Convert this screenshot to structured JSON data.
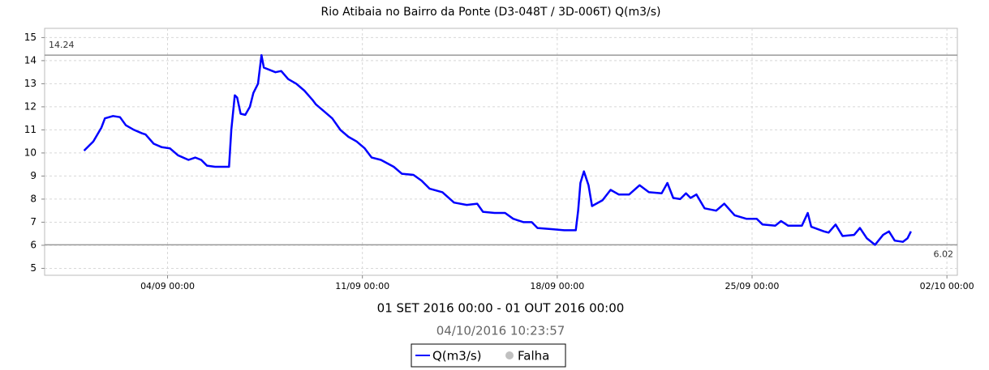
{
  "chart_data": {
    "type": "line",
    "title": "Rio Atibaia no Bairro da Ponte (D3-048T / 3D-006T) Q(m3/s)",
    "subtitle": "01 SET 2016 00:00 - 01 OUT 2016 00:00",
    "timestamp": "04/10/2016 10:23:57",
    "x": [
      "01/09 00:00",
      "01/09 08:00",
      "01/09 15:00",
      "01/09 18:00",
      "02/09 01:00",
      "02/09 07:00",
      "02/09 12:00",
      "02/09 19:00",
      "03/09 02:00",
      "03/09 05:00",
      "03/09 12:00",
      "03/09 19:00",
      "04/09 02:00",
      "04/09 09:00",
      "04/09 18:00",
      "05/09 00:00",
      "05/09 05:00",
      "05/09 10:00",
      "05/09 17:00",
      "06/09 02:00",
      "06/09 05:00",
      "06/09 07:00",
      "06/09 10:00",
      "06/09 12:00",
      "06/09 15:00",
      "06/09 19:00",
      "06/09 23:00",
      "07/09 02:00",
      "07/09 06:00",
      "07/09 09:00",
      "07/09 11:00",
      "07/09 16:00",
      "07/09 21:00",
      "08/09 02:00",
      "08/09 08:00",
      "08/09 15:00",
      "08/09 22:00",
      "09/09 05:00",
      "09/09 08:00",
      "09/09 15:00",
      "09/09 22:00",
      "10/09 05:00",
      "10/09 12:00",
      "10/09 19:00",
      "11/09 02:00",
      "11/09 08:00",
      "11/09 16:00",
      "12/09 03:00",
      "12/09 10:00",
      "12/09 20:00",
      "13/09 03:00",
      "13/09 10:00",
      "13/09 21:00",
      "14/09 07:00",
      "14/09 18:00",
      "15/09 03:00",
      "15/09 08:00",
      "15/09 18:00",
      "16/09 03:00",
      "16/09 10:00",
      "16/09 19:00",
      "17/09 02:00",
      "17/09 07:00",
      "17/09 19:00",
      "18/09 06:00",
      "18/09 16:00",
      "18/09 18:00",
      "18/09 20:00",
      "18/09 23:00",
      "19/09 03:00",
      "19/09 06:00",
      "19/09 15:00",
      "19/09 22:00",
      "20/09 05:00",
      "20/09 14:00",
      "20/09 23:00",
      "21/09 07:00",
      "21/09 18:00",
      "21/09 23:00",
      "22/09 04:00",
      "22/09 10:00",
      "22/09 15:00",
      "22/09 19:00",
      "23/09 00:00",
      "23/09 07:00",
      "23/09 17:00",
      "24/09 00:00",
      "24/09 09:00",
      "24/09 19:00",
      "25/09 04:00",
      "25/09 09:00",
      "25/09 20:00",
      "26/09 01:00",
      "26/09 07:00",
      "26/09 19:00",
      "27/09 00:00",
      "27/09 03:00",
      "27/09 14:00",
      "27/09 18:00",
      "28/09 00:00",
      "28/09 06:00",
      "28/09 16:00",
      "28/09 21:00",
      "29/09 03:00",
      "29/09 10:00",
      "29/09 17:00",
      "29/09 22:00",
      "30/09 03:00",
      "30/09 10:00",
      "30/09 14:00",
      "30/09 17:00"
    ],
    "series": [
      {
        "name": "Q(m3/s)",
        "color": "#0000ff",
        "values": [
          10.1,
          10.5,
          11.1,
          11.5,
          11.6,
          11.55,
          11.2,
          11.0,
          10.85,
          10.8,
          10.4,
          10.25,
          10.2,
          9.9,
          9.7,
          9.8,
          9.7,
          9.45,
          9.4,
          9.4,
          9.4,
          11.0,
          12.5,
          12.4,
          11.7,
          11.65,
          12.0,
          12.6,
          13.0,
          14.24,
          13.7,
          13.6,
          13.5,
          13.55,
          13.2,
          13.0,
          12.7,
          12.3,
          12.1,
          11.8,
          11.5,
          11.0,
          10.7,
          10.5,
          10.2,
          9.8,
          9.7,
          9.4,
          9.1,
          9.05,
          8.8,
          8.45,
          8.3,
          7.85,
          7.75,
          7.8,
          7.45,
          7.4,
          7.4,
          7.15,
          7.0,
          7.0,
          6.75,
          6.7,
          6.65,
          6.65,
          7.5,
          8.7,
          9.2,
          8.6,
          7.7,
          7.95,
          8.4,
          8.2,
          8.2,
          8.6,
          8.3,
          8.25,
          8.7,
          8.05,
          8.0,
          8.25,
          8.05,
          8.2,
          7.6,
          7.5,
          7.8,
          7.3,
          7.15,
          7.15,
          6.9,
          6.85,
          7.05,
          6.85,
          6.85,
          7.4,
          6.8,
          6.6,
          6.55,
          6.9,
          6.4,
          6.45,
          6.75,
          6.3,
          6.02,
          6.45,
          6.6,
          6.2,
          6.15,
          6.3,
          6.6
        ]
      }
    ],
    "missing_legend": {
      "name": "Falha",
      "color": "#c0c0c0"
    },
    "max_line": {
      "value": 14.24,
      "label": "14.24"
    },
    "min_line": {
      "value": 6.02,
      "label": "6.02"
    },
    "xlim": [
      "30/08 14:00",
      "02/10 09:00"
    ],
    "xticks": [
      "04/09 00:00",
      "11/09 00:00",
      "18/09 00:00",
      "25/09 00:00",
      "02/10 00:00"
    ],
    "ylim": [
      4.7,
      15.4
    ],
    "yticks": [
      5,
      6,
      7,
      8,
      9,
      10,
      11,
      12,
      13,
      14,
      15
    ],
    "grid": true
  }
}
